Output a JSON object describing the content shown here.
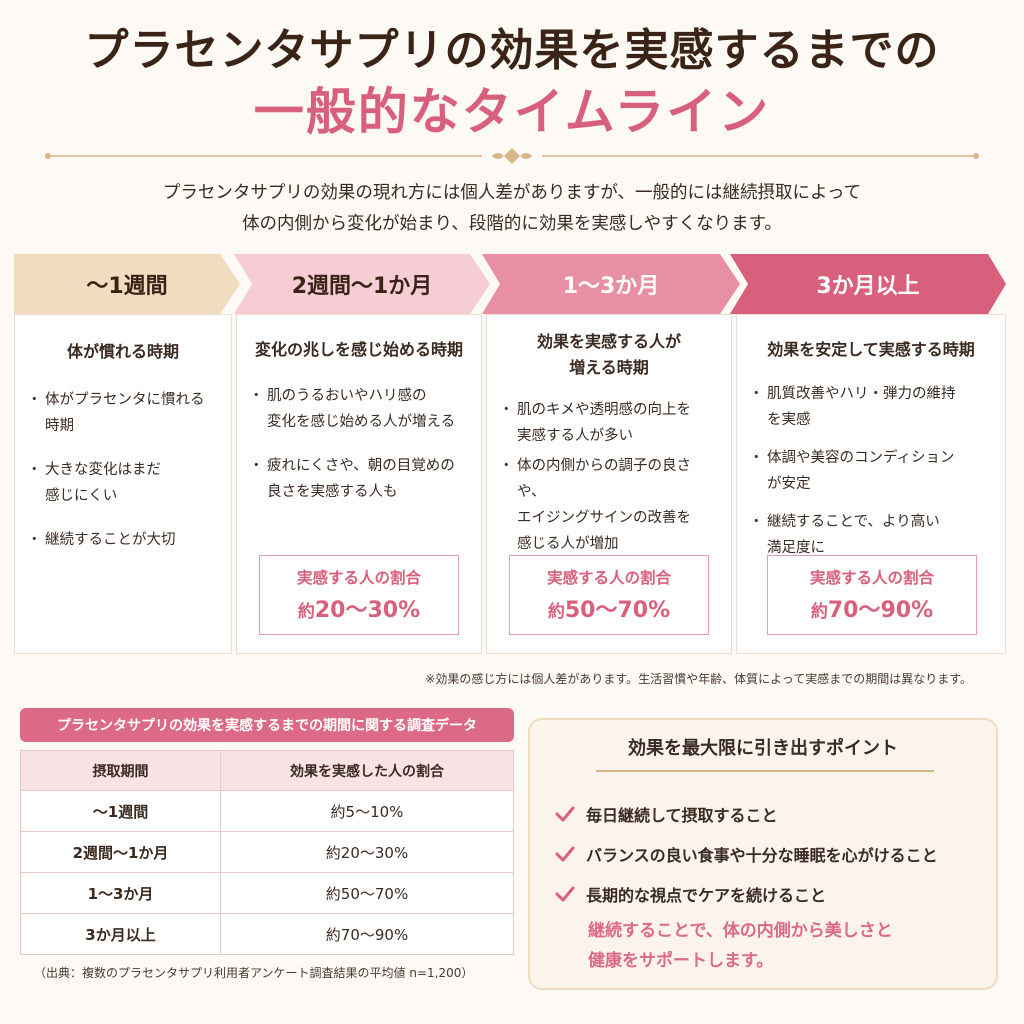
{
  "header": {
    "title_line1": "プラセンタサプリの効果を実感するまでの",
    "title_line2": "一般的なタイムライン"
  },
  "intro": {
    "line1": "プラセンタサプリの効果の現れ方には個人差がありますが、一般的には継続摂取によって",
    "line2": "体の内側から変化が始まり、段階的に効果を実感しやすくなります。"
  },
  "phases": [
    {
      "label": "〜1週間",
      "color": "#f2dcc0",
      "text_color": "#3a2418",
      "title": "体が慣れる時期",
      "bullets": [
        "体がプラセンタに慣れる\n時期",
        "大きな変化はまだ\n感じにくい",
        "継続することが大切"
      ]
    },
    {
      "label": "2週間〜1か月",
      "color": "#f6cdd5",
      "text_color": "#3a2418",
      "title": "変化の兆しを感じ始める時期",
      "bullets": [
        "肌のうるおいやハリ感の\n変化を感じ始める人が増える",
        "疲れにくさや、朝の目覚めの\n良さを実感する人も"
      ],
      "rate_label": "実感する人の割合",
      "rate_prefix": "約",
      "rate_value": "20〜30%"
    },
    {
      "label": "1〜3か月",
      "color": "#e88fa3",
      "text_color": "#ffffff",
      "title": "効果を実感する人が\n増える時期",
      "bullets": [
        "肌のキメや透明感の向上を\n実感する人が多い",
        "体の内側からの調子の良さや、\nエイジングサインの改善を\n感じる人が増加"
      ],
      "rate_label": "実感する人の割合",
      "rate_prefix": "約",
      "rate_value": "50〜70%"
    },
    {
      "label": "3か月以上",
      "color": "#d9607d",
      "text_color": "#ffffff",
      "title": "効果を安定して実感する時期",
      "bullets": [
        "肌質改善やハリ・弾力の維持\nを実感",
        "体調や美容のコンディション\nが安定",
        "継続することで、より高い\n満足度に"
      ],
      "rate_label": "実感する人の割合",
      "rate_prefix": "約",
      "rate_value": "70〜90%"
    }
  ],
  "note": "※効果の感じ方には個人差があります。生活習慣や年齢、体質によって実感までの期間は異なります。",
  "survey": {
    "tag": "プラセンタサプリの効果を実感するまでの期間に関する調査データ",
    "headers": [
      "摂取期間",
      "効果を実感した人の割合"
    ],
    "rows": [
      [
        "〜1週間",
        "約5〜10%"
      ],
      [
        "2週間〜1か月",
        "約20〜30%"
      ],
      [
        "1〜3か月",
        "約50〜70%"
      ],
      [
        "3か月以上",
        "約70〜90%"
      ]
    ],
    "source": "（出典：複数のプラセンタサプリ利用者アンケート調査結果の平均値 n=1,200）"
  },
  "tips": {
    "title": "効果を最大限に引き出すポイント",
    "items": [
      "毎日継続して摂取すること",
      "バランスの良い食事や十分な睡眠を心がけること",
      "長期的な視点でケアを続けること"
    ],
    "closing_line1": "継続することで、体の内側から美しさと",
    "closing_line2": "健康をサポートします。",
    "check_icon": "check-icon",
    "accent": "#dc6a87"
  }
}
